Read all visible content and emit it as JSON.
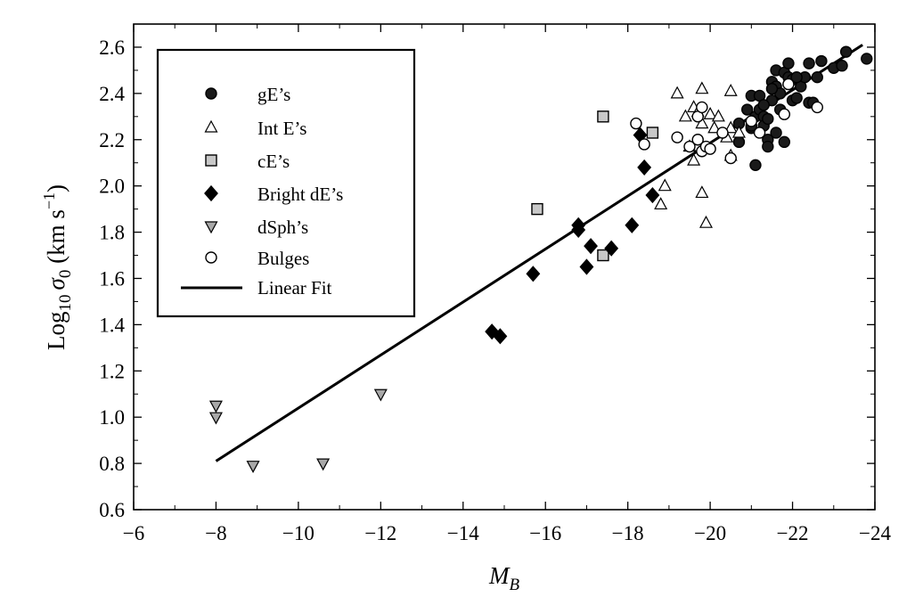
{
  "chart_data": {
    "type": "scatter",
    "title": "",
    "xlabel": {
      "main": "M",
      "sub": "B"
    },
    "ylabel": {
      "prefix": "Log",
      "sub": "10",
      "sym": "σ",
      "sym_sub": "0",
      "unit_open": " (km s",
      "unit_sup": "−1",
      "unit_close": ")"
    },
    "xlim": [
      -6,
      -24
    ],
    "ylim": [
      0.6,
      2.7
    ],
    "xticks": [
      {
        "v": -6,
        "label": "−6"
      },
      {
        "v": -8,
        "label": "−8"
      },
      {
        "v": -10,
        "label": "−10"
      },
      {
        "v": -12,
        "label": "−12"
      },
      {
        "v": -14,
        "label": "−14"
      },
      {
        "v": -16,
        "label": "−16"
      },
      {
        "v": -18,
        "label": "−18"
      },
      {
        "v": -20,
        "label": "−20"
      },
      {
        "v": -22,
        "label": "−22"
      },
      {
        "v": -24,
        "label": "−24"
      }
    ],
    "yticks": [
      {
        "v": 0.6,
        "label": "0.6"
      },
      {
        "v": 0.8,
        "label": "0.8"
      },
      {
        "v": 1.0,
        "label": "1.0"
      },
      {
        "v": 1.2,
        "label": "1.2"
      },
      {
        "v": 1.4,
        "label": "1.4"
      },
      {
        "v": 1.6,
        "label": "1.6"
      },
      {
        "v": 1.8,
        "label": "1.8"
      },
      {
        "v": 2.0,
        "label": "2.0"
      },
      {
        "v": 2.2,
        "label": "2.2"
      },
      {
        "v": 2.4,
        "label": "2.4"
      },
      {
        "v": 2.6,
        "label": "2.6"
      }
    ],
    "legend_position": "top-left",
    "grid": false,
    "series": [
      {
        "name": "gE’s",
        "marker": "circle",
        "fill": "#1a1a1a",
        "stroke": "#000000",
        "points": [
          [
            -20.7,
            2.27
          ],
          [
            -20.7,
            2.19
          ],
          [
            -20.9,
            2.33
          ],
          [
            -21.0,
            2.39
          ],
          [
            -21.0,
            2.25
          ],
          [
            -21.1,
            2.3
          ],
          [
            -21.1,
            2.09
          ],
          [
            -21.2,
            2.39
          ],
          [
            -21.2,
            2.33
          ],
          [
            -21.3,
            2.3
          ],
          [
            -21.3,
            2.26
          ],
          [
            -21.4,
            2.2
          ],
          [
            -21.4,
            2.29
          ],
          [
            -21.4,
            2.17
          ],
          [
            -21.5,
            2.37
          ],
          [
            -21.5,
            2.45
          ],
          [
            -21.6,
            2.5
          ],
          [
            -21.6,
            2.43
          ],
          [
            -21.6,
            2.23
          ],
          [
            -21.7,
            2.4
          ],
          [
            -21.7,
            2.33
          ],
          [
            -21.8,
            2.49
          ],
          [
            -21.8,
            2.19
          ],
          [
            -21.9,
            2.53
          ],
          [
            -21.9,
            2.47
          ],
          [
            -21.9,
            2.44
          ],
          [
            -22.0,
            2.37
          ],
          [
            -22.0,
            2.46
          ],
          [
            -22.1,
            2.38
          ],
          [
            -22.2,
            2.43
          ],
          [
            -22.3,
            2.47
          ],
          [
            -22.4,
            2.36
          ],
          [
            -22.4,
            2.53
          ],
          [
            -22.5,
            2.36
          ],
          [
            -22.6,
            2.47
          ],
          [
            -22.7,
            2.54
          ],
          [
            -23.0,
            2.51
          ],
          [
            -23.2,
            2.52
          ],
          [
            -23.3,
            2.58
          ],
          [
            -23.8,
            2.55
          ],
          [
            -22.1,
            2.47
          ],
          [
            -21.5,
            2.42
          ],
          [
            -21.3,
            2.35
          ],
          [
            -21.0,
            2.26
          ]
        ]
      },
      {
        "name": "Int E’s",
        "marker": "triangle-up",
        "fill": "#ffffff",
        "stroke": "#000000",
        "points": [
          [
            -19.2,
            2.4
          ],
          [
            -19.4,
            2.3
          ],
          [
            -19.5,
            2.17
          ],
          [
            -19.6,
            2.11
          ],
          [
            -19.6,
            2.34
          ],
          [
            -19.7,
            2.32
          ],
          [
            -19.8,
            2.27
          ],
          [
            -19.8,
            2.42
          ],
          [
            -19.8,
            1.97
          ],
          [
            -19.9,
            1.84
          ],
          [
            -20.0,
            2.31
          ],
          [
            -20.1,
            2.25
          ],
          [
            -20.2,
            2.3
          ],
          [
            -20.4,
            2.21
          ],
          [
            -20.5,
            2.41
          ],
          [
            -20.5,
            2.13
          ],
          [
            -20.5,
            2.25
          ],
          [
            -18.8,
            1.92
          ],
          [
            -18.9,
            2.0
          ],
          [
            -20.7,
            2.23
          ]
        ]
      },
      {
        "name": "cE’s",
        "marker": "square",
        "fill": "#c8c8c8",
        "stroke": "#000000",
        "points": [
          [
            -15.8,
            1.9
          ],
          [
            -17.4,
            2.3
          ],
          [
            -18.6,
            2.23
          ],
          [
            -17.4,
            1.7
          ]
        ]
      },
      {
        "name": "Bright dE’s",
        "marker": "diamond",
        "fill": "#000000",
        "stroke": "#000000",
        "points": [
          [
            -14.7,
            1.37
          ],
          [
            -14.9,
            1.35
          ],
          [
            -15.7,
            1.62
          ],
          [
            -16.8,
            1.81
          ],
          [
            -16.8,
            1.83
          ],
          [
            -17.0,
            1.65
          ],
          [
            -17.1,
            1.74
          ],
          [
            -17.6,
            1.73
          ],
          [
            -18.1,
            1.83
          ],
          [
            -18.3,
            2.22
          ],
          [
            -18.4,
            2.08
          ],
          [
            -18.6,
            1.96
          ]
        ]
      },
      {
        "name": "dSph’s",
        "marker": "triangle-down",
        "fill": "#a8a8a8",
        "stroke": "#000000",
        "points": [
          [
            -8.0,
            1.05
          ],
          [
            -8.0,
            1.0
          ],
          [
            -8.9,
            0.79
          ],
          [
            -10.6,
            0.8
          ],
          [
            -12.0,
            1.1
          ]
        ]
      },
      {
        "name": "Bulges",
        "marker": "circle",
        "fill": "#ffffff",
        "stroke": "#000000",
        "points": [
          [
            -18.2,
            2.27
          ],
          [
            -18.4,
            2.18
          ],
          [
            -19.2,
            2.21
          ],
          [
            -19.5,
            2.17
          ],
          [
            -19.7,
            2.2
          ],
          [
            -19.7,
            2.3
          ],
          [
            -19.8,
            2.34
          ],
          [
            -19.8,
            2.15
          ],
          [
            -19.9,
            2.17
          ],
          [
            -20.0,
            2.16
          ],
          [
            -20.3,
            2.23
          ],
          [
            -20.5,
            2.12
          ],
          [
            -21.0,
            2.28
          ],
          [
            -21.2,
            2.23
          ],
          [
            -21.8,
            2.31
          ],
          [
            -22.6,
            2.34
          ],
          [
            -21.9,
            2.44
          ]
        ]
      }
    ],
    "fit": {
      "name": "Linear Fit",
      "x": [
        -8.0,
        -23.7
      ],
      "y": [
        0.81,
        2.61
      ]
    }
  }
}
